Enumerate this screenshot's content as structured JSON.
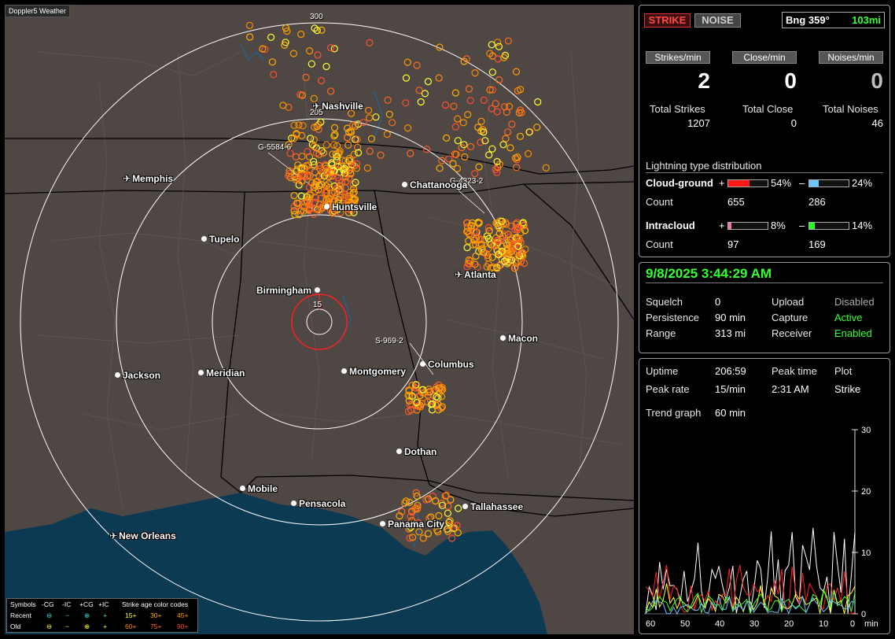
{
  "app": {
    "title": "Doppler5 Weather"
  },
  "map": {
    "range_rings": [
      "300",
      "205",
      "15"
    ],
    "cities": [
      {
        "name": "Nashville",
        "type": "airport"
      },
      {
        "name": "Memphis",
        "type": "airport"
      },
      {
        "name": "Chattanooga",
        "type": "city"
      },
      {
        "name": "Huntsville",
        "type": "city"
      },
      {
        "name": "Tupelo",
        "type": "city"
      },
      {
        "name": "Atlanta",
        "type": "airport"
      },
      {
        "name": "Birmingham",
        "type": "city"
      },
      {
        "name": "Macon",
        "type": "city"
      },
      {
        "name": "Jackson",
        "type": "city"
      },
      {
        "name": "Meridian",
        "type": "city"
      },
      {
        "name": "Montgomery",
        "type": "city"
      },
      {
        "name": "Columbus",
        "type": "city"
      },
      {
        "name": "Dothan",
        "type": "city"
      },
      {
        "name": "Mobile",
        "type": "city"
      },
      {
        "name": "Pensacola",
        "type": "city"
      },
      {
        "name": "Tallahassee",
        "type": "city"
      },
      {
        "name": "Panama City",
        "type": "city"
      },
      {
        "name": "New Orleans",
        "type": "airport"
      }
    ],
    "storm_labels": [
      "G-5584-6",
      "G-4323-2",
      "S-969-2"
    ],
    "legend": {
      "symbols_label": "Symbols",
      "col_neg_cg": "-CG",
      "col_neg_ic": "-IC",
      "col_pos_cg": "+CG",
      "col_pos_ic": "+IC",
      "age_title": "Strike age color codes",
      "recent_label": "Recent",
      "old_label": "Old",
      "recent_ages": [
        "15+",
        "30+",
        "45+"
      ],
      "old_ages": [
        "60+",
        "75+",
        "90+"
      ],
      "colors": {
        "15": "#ffff33",
        "30": "#ffb000",
        "45": "#ff9a00",
        "60": "#ff8a00",
        "75": "#ff6a20",
        "90": "#ff5030"
      }
    }
  },
  "stats": {
    "strike_button": "STRIKE",
    "noise_button": "NOISE",
    "bearing": "Bng 359°",
    "distance": "103mi",
    "tabs": [
      "Strikes/min",
      "Close/min",
      "Noises/min"
    ],
    "rates": [
      "2",
      "0",
      "0"
    ],
    "totals_labels": [
      "Total Strikes",
      "Total Close",
      "Total Noises"
    ],
    "totals_values": [
      "1207",
      "0",
      "46"
    ],
    "distribution_title": "Lightning type distribution",
    "cloud_ground_label": "Cloud-ground",
    "intracloud_label": "Intracloud",
    "count_label": "Count",
    "plus_sign": "+",
    "minus_sign": "–",
    "cg_pos_pct": "54%",
    "cg_neg_pct": "24%",
    "cg_pos_count": "655",
    "cg_neg_count": "286",
    "ic_pos_pct": "8%",
    "ic_neg_pct": "14%",
    "ic_pos_count": "97",
    "ic_neg_count": "169",
    "bar_colors": {
      "cg_pos": "#ff1a1a",
      "cg_neg": "#6ec3ff",
      "ic_pos": "#ff6fb7",
      "ic_neg": "#22ff22"
    }
  },
  "status": {
    "datetime": "9/8/2025 3:44:29 AM",
    "rows": [
      [
        "Squelch",
        "0",
        "Upload",
        "Disabled"
      ],
      [
        "Persistence",
        "90 min",
        "Capture",
        "Active"
      ],
      [
        "Range",
        "313 mi",
        "Receiver",
        "Enabled"
      ]
    ]
  },
  "trend": {
    "uptime_label": "Uptime",
    "uptime": "206:59",
    "peak_time_label": "Peak time",
    "peak_time": "2:31 AM",
    "plot_label": "Plot",
    "plot_value": "Strike",
    "peak_rate_label": "Peak rate",
    "peak_rate": "15/min",
    "graph_label": "Trend graph",
    "graph_span": "60 min",
    "y_ticks": [
      "30",
      "20",
      "10",
      "0"
    ],
    "x_ticks": [
      "60",
      "50",
      "40",
      "30",
      "20",
      "10",
      "0",
      "min"
    ]
  }
}
